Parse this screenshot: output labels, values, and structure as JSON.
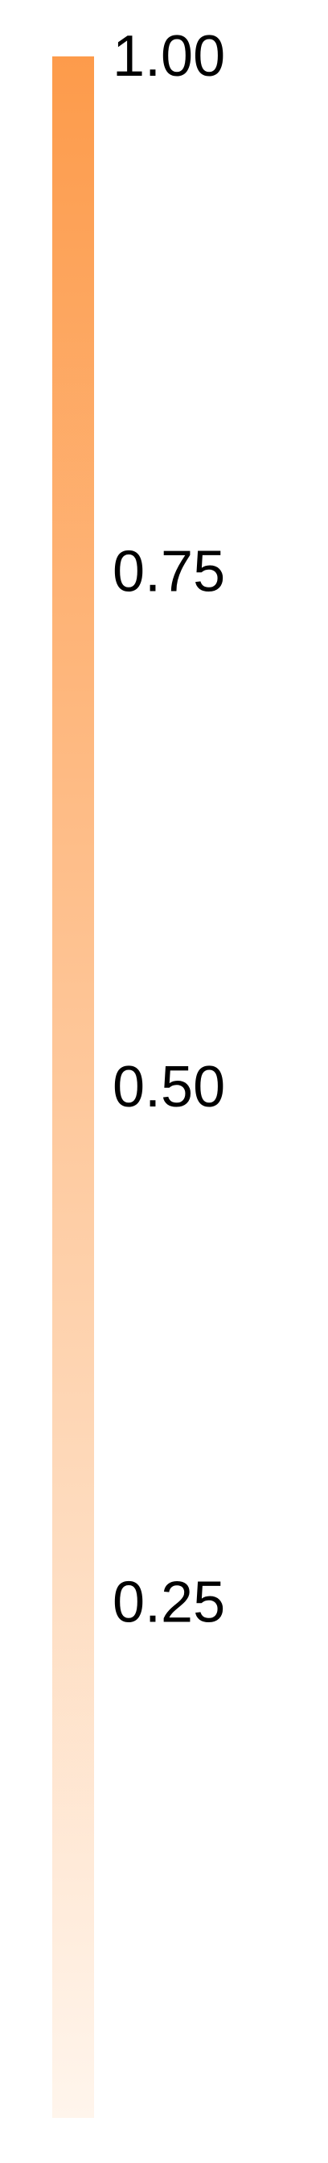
{
  "chart_data": {
    "type": "heatmap",
    "component": "colorbar",
    "orientation": "vertical",
    "range": [
      0.0,
      1.0
    ],
    "ticks": [
      1.0,
      0.75,
      0.5,
      0.25
    ],
    "tick_labels": [
      "1.00",
      "0.75",
      "0.50",
      "0.25"
    ],
    "colormap": {
      "low": "#fff5ec",
      "high": "#fd9b4b"
    }
  }
}
